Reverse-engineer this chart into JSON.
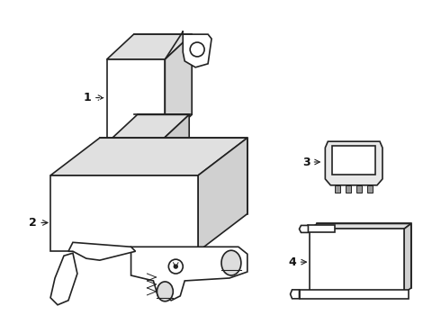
{
  "background_color": "#ffffff",
  "line_color": "#222222",
  "text_color": "#111111",
  "fig_width": 4.9,
  "fig_height": 3.6,
  "dpi": 100
}
